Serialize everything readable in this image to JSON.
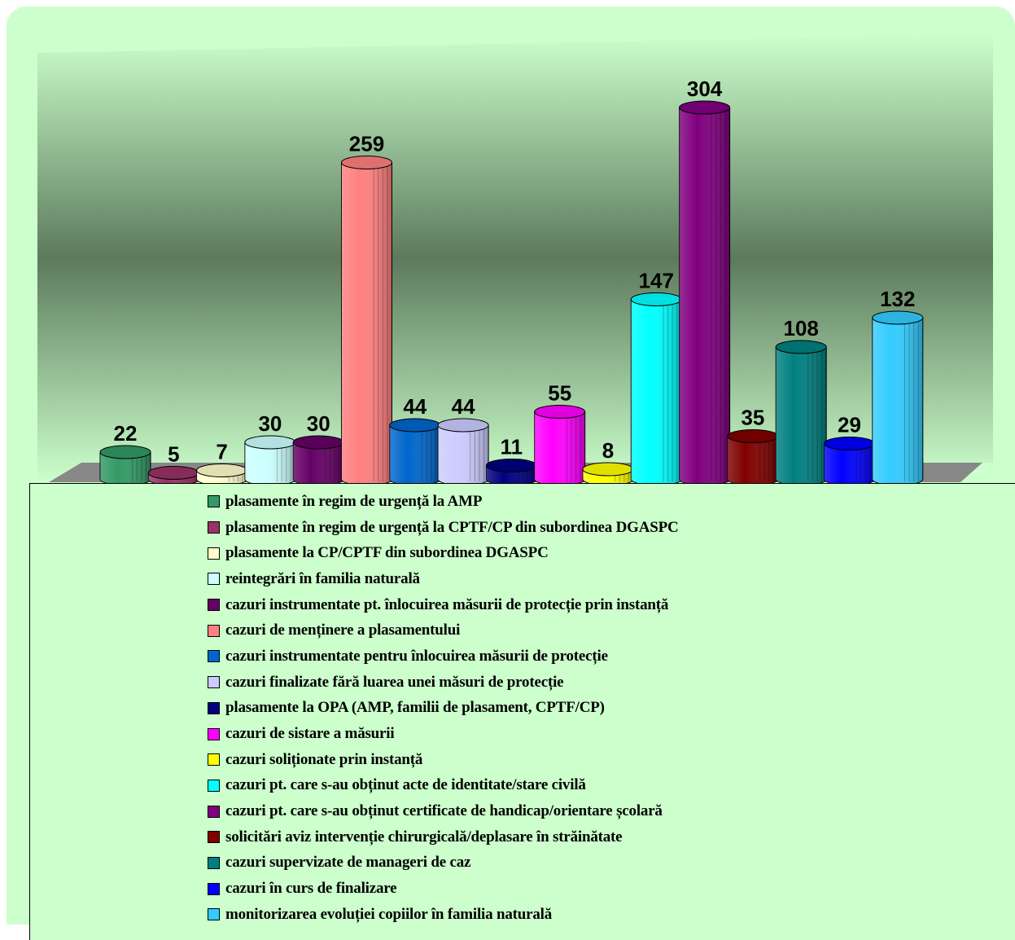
{
  "chart_data": {
    "type": "bar",
    "title": "",
    "xlabel": "",
    "ylabel": "",
    "ylim": [
      0,
      330
    ],
    "grid": false,
    "legend_position": "bottom",
    "data_labels": true,
    "categories": [
      "plasamente în regim de urgență la AMP",
      "plasamente în regim de urgență la CPTF/CP din subordinea DGASPC",
      "plasamente la CP/CPTF din subordinea DGASPC",
      "reintegrări în familia naturală",
      "cazuri instrumentate pt. înlocuirea măsurii de protecție prin instanță",
      "cazuri de menținere a plasamentului",
      "cazuri instrumentate pentru înlocuirea măsurii de protecție",
      "cazuri finalizate fără luarea unei măsuri de protecție",
      "plasamente la OPA (AMP, familii de plasament, CPTF/CP)",
      "cazuri de sistare a măsurii",
      "cazuri soliționate prin instanță",
      "cazuri pt. care s-au obținut acte de identitate/stare civilă",
      "cazuri pt. care s-au obținut certificate de handicap/orientare școlară",
      "solicitări aviz intervenție chirurgicală/deplasare în străinătate",
      "cazuri supervizate de manageri de caz",
      "cazuri în curs de finalizare",
      "monitorizarea evoluției copiilor în familia naturală"
    ],
    "values": [
      22,
      5,
      7,
      30,
      30,
      259,
      44,
      44,
      11,
      55,
      8,
      147,
      304,
      35,
      108,
      29,
      132
    ],
    "colors": [
      "#339966",
      "#993366",
      "#ffffcc",
      "#ccffff",
      "#660066",
      "#ff8080",
      "#0066cc",
      "#ccccff",
      "#000080",
      "#ff00ff",
      "#ffff00",
      "#00ffff",
      "#800080",
      "#800000",
      "#008080",
      "#0000ff",
      "#33ccff"
    ]
  }
}
